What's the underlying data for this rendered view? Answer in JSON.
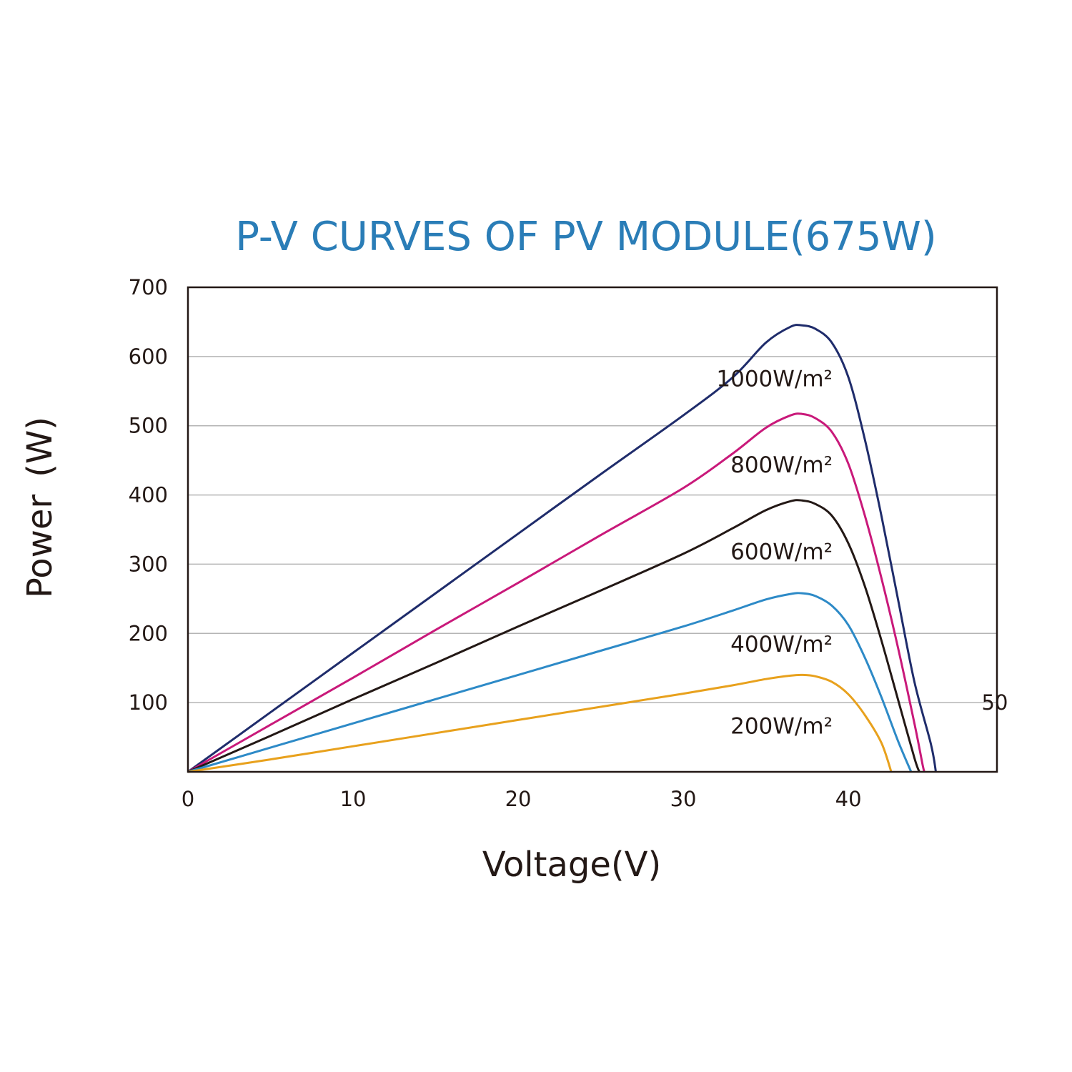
{
  "chart_data": {
    "type": "line",
    "title": "P-V CURVES OF PV MODULE(675W)",
    "xlabel": "Voltage(V)",
    "ylabel": "Power (W)",
    "xlim": [
      0,
      49
    ],
    "ylim": [
      0,
      700
    ],
    "x_ticks": [
      "0",
      "10",
      "20",
      "30",
      "40",
      "50"
    ],
    "x_tick_values": [
      0,
      10,
      20,
      30,
      40,
      50
    ],
    "y_ticks": [
      "100",
      "200",
      "300",
      "400",
      "500",
      "600",
      "700"
    ],
    "y_tick_values": [
      100,
      200,
      300,
      400,
      500,
      600,
      700
    ],
    "grid": "horizontal",
    "series": [
      {
        "name": "1000W/m²",
        "color": "#1f2c6b",
        "points": [
          [
            0,
            0
          ],
          [
            5,
            86
          ],
          [
            10,
            172
          ],
          [
            15,
            258
          ],
          [
            20,
            344
          ],
          [
            25,
            430
          ],
          [
            30,
            515
          ],
          [
            33,
            570
          ],
          [
            35,
            620
          ],
          [
            36.5,
            643
          ],
          [
            37.2,
            645
          ],
          [
            38,
            640
          ],
          [
            39,
            620
          ],
          [
            40,
            570
          ],
          [
            41,
            480
          ],
          [
            42,
            370
          ],
          [
            43,
            250
          ],
          [
            44,
            130
          ],
          [
            45,
            40
          ],
          [
            45.3,
            0
          ]
        ]
      },
      {
        "name": "800W/m²",
        "color": "#c9197a",
        "points": [
          [
            0,
            0
          ],
          [
            5,
            68
          ],
          [
            10,
            136
          ],
          [
            15,
            205
          ],
          [
            20,
            273
          ],
          [
            25,
            342
          ],
          [
            30,
            410
          ],
          [
            33,
            460
          ],
          [
            35,
            497
          ],
          [
            36.5,
            515
          ],
          [
            37.2,
            517
          ],
          [
            38,
            511
          ],
          [
            39,
            491
          ],
          [
            40,
            445
          ],
          [
            41,
            370
          ],
          [
            42,
            280
          ],
          [
            43,
            180
          ],
          [
            44,
            70
          ],
          [
            44.5,
            10
          ],
          [
            44.6,
            0
          ]
        ]
      },
      {
        "name": "600W/m²",
        "color": "#231815",
        "points": [
          [
            0,
            0
          ],
          [
            5,
            52
          ],
          [
            10,
            105
          ],
          [
            15,
            157
          ],
          [
            20,
            210
          ],
          [
            25,
            262
          ],
          [
            30,
            315
          ],
          [
            33,
            352
          ],
          [
            35,
            378
          ],
          [
            36.5,
            391
          ],
          [
            37.2,
            392
          ],
          [
            38,
            387
          ],
          [
            39,
            370
          ],
          [
            40,
            330
          ],
          [
            41,
            268
          ],
          [
            42,
            190
          ],
          [
            43,
            105
          ],
          [
            44,
            20
          ],
          [
            44.3,
            0
          ]
        ]
      },
      {
        "name": "400W/m²",
        "color": "#2d8ac7",
        "points": [
          [
            0,
            0
          ],
          [
            5,
            35
          ],
          [
            10,
            70
          ],
          [
            15,
            105
          ],
          [
            20,
            140
          ],
          [
            25,
            175
          ],
          [
            30,
            210
          ],
          [
            33,
            233
          ],
          [
            35,
            249
          ],
          [
            36.5,
            257
          ],
          [
            37.2,
            258
          ],
          [
            38,
            254
          ],
          [
            39,
            240
          ],
          [
            40,
            212
          ],
          [
            41,
            165
          ],
          [
            42,
            108
          ],
          [
            43,
            45
          ],
          [
            43.8,
            0
          ]
        ]
      },
      {
        "name": "200W/m²",
        "color": "#e8a11d",
        "points": [
          [
            0,
            0
          ],
          [
            5,
            18
          ],
          [
            10,
            37
          ],
          [
            15,
            56
          ],
          [
            20,
            75
          ],
          [
            25,
            94
          ],
          [
            30,
            113
          ],
          [
            33,
            125
          ],
          [
            35,
            134
          ],
          [
            36.5,
            139
          ],
          [
            37.2,
            140
          ],
          [
            38,
            138
          ],
          [
            39,
            130
          ],
          [
            40,
            112
          ],
          [
            41,
            82
          ],
          [
            42,
            42
          ],
          [
            42.6,
            0
          ]
        ]
      }
    ]
  }
}
